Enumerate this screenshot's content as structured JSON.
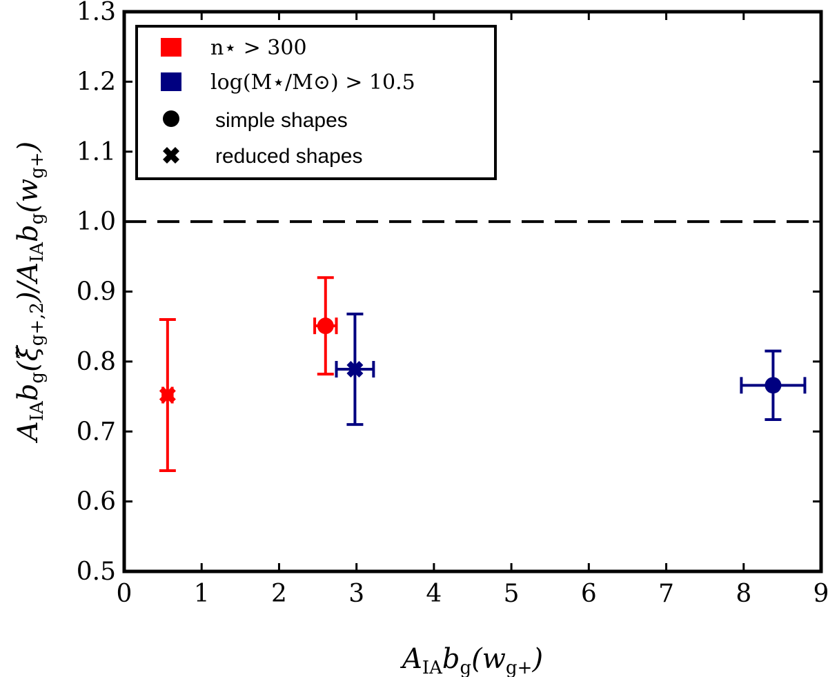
{
  "chart_data": {
    "type": "scatter",
    "xlabel": "A_IA b_g(w_g+)",
    "ylabel": "A_IA b_g(ξ̃_g+,2)/A_IA b_g(w_g+)",
    "xlim": [
      0,
      9
    ],
    "ylim": [
      0.5,
      1.3
    ],
    "x_ticks": [
      "0",
      "1",
      "2",
      "3",
      "4",
      "5",
      "6",
      "7",
      "8",
      "9"
    ],
    "y_ticks": [
      "0.5",
      "0.6",
      "0.7",
      "0.8",
      "0.9",
      "1.0",
      "1.1",
      "1.2",
      "1.3"
    ],
    "reference_line": {
      "y": 1.0,
      "style": "dashed",
      "color": "#000000"
    },
    "colors": {
      "red": "#ff0000",
      "blue": "#000080",
      "black": "#000000"
    },
    "legend": {
      "placement": "top-left",
      "entries": [
        {
          "label": "n⋆ > 300",
          "marker": "square",
          "color": "#ff0000"
        },
        {
          "label": "log(M⋆/M⊙) > 10.5",
          "marker": "square",
          "color": "#000080"
        },
        {
          "label": "simple shapes",
          "marker": "circle",
          "color": "#000000"
        },
        {
          "label": "reduced shapes",
          "marker": "x",
          "color": "#000000"
        }
      ]
    },
    "series": [
      {
        "name": "n⋆ > 300",
        "color": "#ff0000",
        "points": [
          {
            "shape": "reduced",
            "x": 0.56,
            "y": 0.752,
            "xerr": 0.06,
            "yerr_low": 0.108,
            "yerr_high": 0.108
          },
          {
            "shape": "simple",
            "x": 2.6,
            "y": 0.851,
            "xerr": 0.14,
            "yerr_low": 0.069,
            "yerr_high": 0.069
          }
        ]
      },
      {
        "name": "log(M⋆/M⊙) > 10.5",
        "color": "#000080",
        "points": [
          {
            "shape": "reduced",
            "x": 2.98,
            "y": 0.789,
            "xerr": 0.24,
            "yerr_low": 0.079,
            "yerr_high": 0.079
          },
          {
            "shape": "simple",
            "x": 8.38,
            "y": 0.766,
            "xerr": 0.41,
            "yerr_low": 0.049,
            "yerr_high": 0.049
          }
        ]
      }
    ]
  }
}
